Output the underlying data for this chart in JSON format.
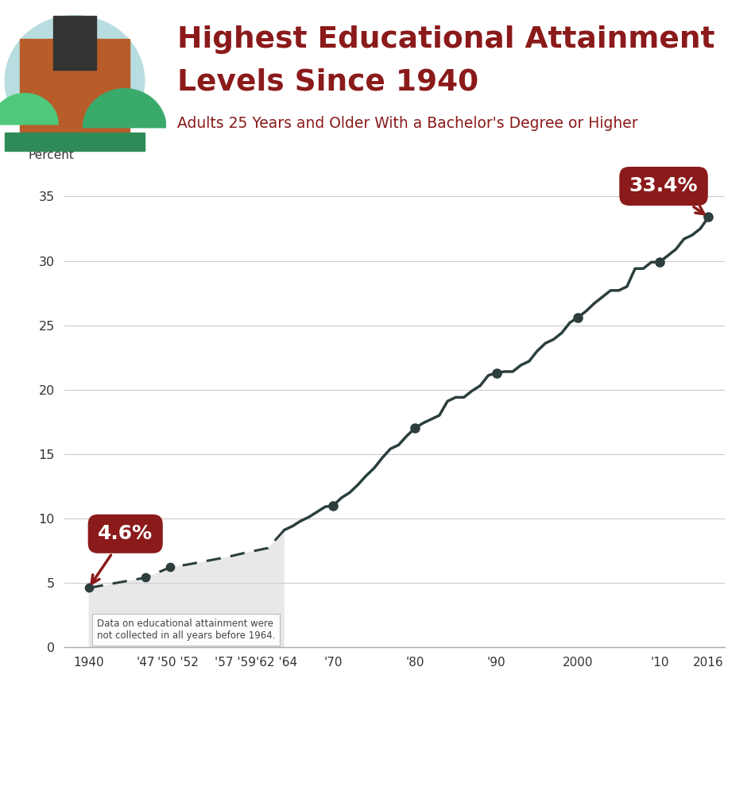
{
  "title_line1": "Highest Educational Attainment",
  "title_line2": "Levels Since 1940",
  "subtitle": "Adults 25 Years and Older With a Bachelor's Degree or Higher",
  "title_color": "#8B1A1A",
  "subtitle_color": "#8B1A1A",
  "ylabel": "Percent",
  "ylim": [
    0,
    37
  ],
  "yticks": [
    0,
    5,
    10,
    15,
    20,
    25,
    30,
    35
  ],
  "footer_bg": "#3d4f5c",
  "line_color_dashed": "#2c3e3e",
  "line_color_solid": "#2c3e3e",
  "marker_color": "#2c3e3e",
  "annotation_bg": "#8B1A1A",
  "shaded_region_color": "#d3d3d3",
  "note_text": "Data on educational attainment were\nnot collected in all years before 1964.",
  "years_dashed": [
    1940,
    1947,
    1950,
    1952,
    1957,
    1959,
    1962,
    1964
  ],
  "values_dashed": [
    4.6,
    5.4,
    6.2,
    6.4,
    7.0,
    7.3,
    7.7,
    9.1
  ],
  "years_solid": [
    1964,
    1965,
    1966,
    1967,
    1968,
    1969,
    1970,
    1971,
    1972,
    1973,
    1974,
    1975,
    1976,
    1977,
    1978,
    1979,
    1980,
    1981,
    1982,
    1983,
    1984,
    1985,
    1986,
    1987,
    1988,
    1989,
    1990,
    1991,
    1992,
    1993,
    1994,
    1995,
    1996,
    1997,
    1998,
    1999,
    2000,
    2001,
    2002,
    2003,
    2004,
    2005,
    2006,
    2007,
    2008,
    2009,
    2010,
    2011,
    2012,
    2013,
    2014,
    2015,
    2016
  ],
  "values_solid": [
    9.1,
    9.4,
    9.8,
    10.1,
    10.5,
    10.9,
    11.0,
    11.6,
    12.0,
    12.6,
    13.3,
    13.9,
    14.7,
    15.4,
    15.7,
    16.4,
    17.0,
    17.4,
    17.7,
    18.0,
    19.1,
    19.4,
    19.4,
    19.9,
    20.3,
    21.1,
    21.3,
    21.4,
    21.4,
    21.9,
    22.2,
    23.0,
    23.6,
    23.9,
    24.4,
    25.2,
    25.6,
    26.1,
    26.7,
    27.2,
    27.7,
    27.7,
    28.0,
    29.4,
    29.4,
    29.9,
    29.9,
    30.4,
    30.9,
    31.7,
    32.0,
    32.5,
    33.4
  ],
  "xtick_labels": [
    "1940",
    "'47",
    "'50 '52",
    "'57 '59",
    "'62 '64",
    "'70",
    "'80",
    "'90",
    "2000",
    "'10",
    "2016"
  ],
  "xtick_positions": [
    1940,
    1947,
    1951,
    1958,
    1963,
    1970,
    1980,
    1990,
    2000,
    2010,
    2016
  ],
  "highlighted_years_solid": [
    1970,
    1980,
    1990,
    2000,
    2010,
    2016
  ],
  "highlighted_values_solid": [
    11.0,
    17.0,
    21.3,
    25.6,
    29.9,
    33.4
  ],
  "highlighted_years_dashed": [
    1947,
    1950
  ],
  "highlighted_values_dashed": [
    5.4,
    6.2
  ],
  "header_img_color": "#c8762b",
  "header_circle_color": "#e8e8e8",
  "separator_color": "#cccccc",
  "xlim_left": 1937,
  "xlim_right": 2018
}
